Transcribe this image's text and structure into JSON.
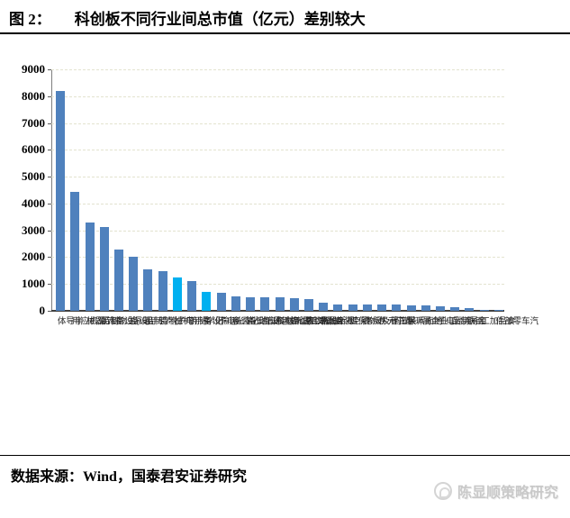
{
  "figure": {
    "label": "图 2：",
    "title": "科创板不同行业间总市值（亿元）差别较大"
  },
  "chart_data": {
    "type": "bar",
    "title": "科创板不同行业间总市值（亿元）差别较大",
    "xlabel": "",
    "ylabel": "",
    "ylim": [
      0,
      9000
    ],
    "yticks": [
      0,
      1000,
      2000,
      3000,
      4000,
      5000,
      6000,
      7000,
      8000,
      9000
    ],
    "grid": "horizontal dash-dot beige",
    "legend": "none",
    "categories": [
      "半导体",
      "计算机应用",
      "医疗器械",
      "生物制品",
      "电源设备",
      "专用设备",
      "化学制品",
      "电子制造",
      "通用机械",
      "化学制药",
      "运输设备",
      "光学光电子",
      "电气自动化装备",
      "通信设备",
      "其他交运设备",
      "金属非金属新材料",
      "计算机设备",
      "仪器仪表",
      "视听设备",
      "航空装备",
      "动物保健",
      "环保工程及服务",
      "电子元件",
      "塑料",
      "地面兵装",
      "工业金属",
      "其他电子",
      "金属制品",
      "钢铁",
      "食品加工",
      "汽车零部件"
    ],
    "values": [
      8200,
      4440,
      3290,
      3110,
      2280,
      2030,
      1550,
      1480,
      1250,
      1120,
      690,
      660,
      530,
      520,
      500,
      490,
      470,
      440,
      300,
      250,
      240,
      230,
      220,
      235,
      200,
      215,
      160,
      130,
      105,
      45,
      30
    ],
    "highlight_indices": [
      8,
      10
    ],
    "colors": {
      "bar": "#4f81bd",
      "bar_highlight": "#00b0f0",
      "gridline": "#e3e3cf",
      "x_axis": "#404040",
      "y_axis": "#7f7f7f"
    }
  },
  "footer": {
    "source": "数据来源：Wind，国泰君安证券研究"
  },
  "watermark": {
    "text": "陈显顺策略研究"
  }
}
